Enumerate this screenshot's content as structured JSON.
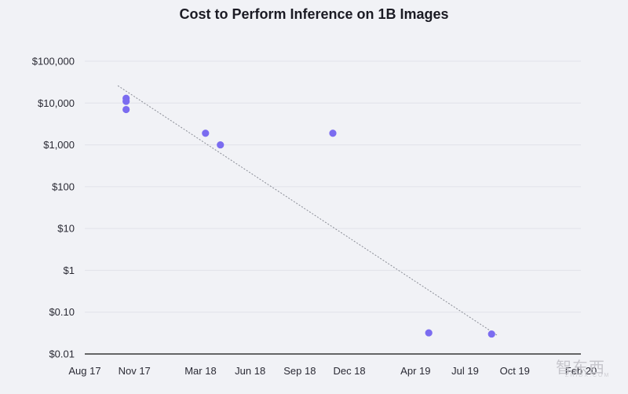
{
  "chart_data": {
    "type": "scatter",
    "title": "Cost to Perform Inference on 1B Images",
    "xlabel": "",
    "ylabel": "",
    "yscale": "log",
    "ylim": [
      0.01,
      100000
    ],
    "y_ticks": [
      {
        "value": 100000,
        "label": "$100,000"
      },
      {
        "value": 10000,
        "label": "$10,000"
      },
      {
        "value": 1000,
        "label": "$1,000"
      },
      {
        "value": 100,
        "label": "$100"
      },
      {
        "value": 10,
        "label": "$10"
      },
      {
        "value": 1,
        "label": "$1"
      },
      {
        "value": 0.1,
        "label": "$0.10"
      },
      {
        "value": 0.01,
        "label": "$0.01"
      }
    ],
    "xlim_months": [
      0,
      30
    ],
    "x_ticks": [
      {
        "month": 0,
        "label": "Aug 17"
      },
      {
        "month": 3,
        "label": "Nov 17"
      },
      {
        "month": 7,
        "label": "Mar 18"
      },
      {
        "month": 10,
        "label": "Jun 18"
      },
      {
        "month": 13,
        "label": "Sep 18"
      },
      {
        "month": 16,
        "label": "Dec 18"
      },
      {
        "month": 20,
        "label": "Apr 19"
      },
      {
        "month": 23,
        "label": "Jul 19"
      },
      {
        "month": 26,
        "label": "Oct 19"
      },
      {
        "month": 30,
        "label": "Feb 20"
      }
    ],
    "points": [
      {
        "month": 2.5,
        "cost": 13000
      },
      {
        "month": 2.5,
        "cost": 11000
      },
      {
        "month": 2.5,
        "cost": 7000
      },
      {
        "month": 7.3,
        "cost": 1900
      },
      {
        "month": 8.2,
        "cost": 1000
      },
      {
        "month": 15.0,
        "cost": 1900
      },
      {
        "month": 20.8,
        "cost": 0.032
      },
      {
        "month": 24.6,
        "cost": 0.03
      }
    ],
    "trendline": {
      "start": {
        "month": 2.0,
        "cost": 26000
      },
      "end": {
        "month": 25.0,
        "cost": 0.027
      }
    }
  },
  "watermark": {
    "main": "智东西",
    "sub": "ZHIDX.COM"
  }
}
